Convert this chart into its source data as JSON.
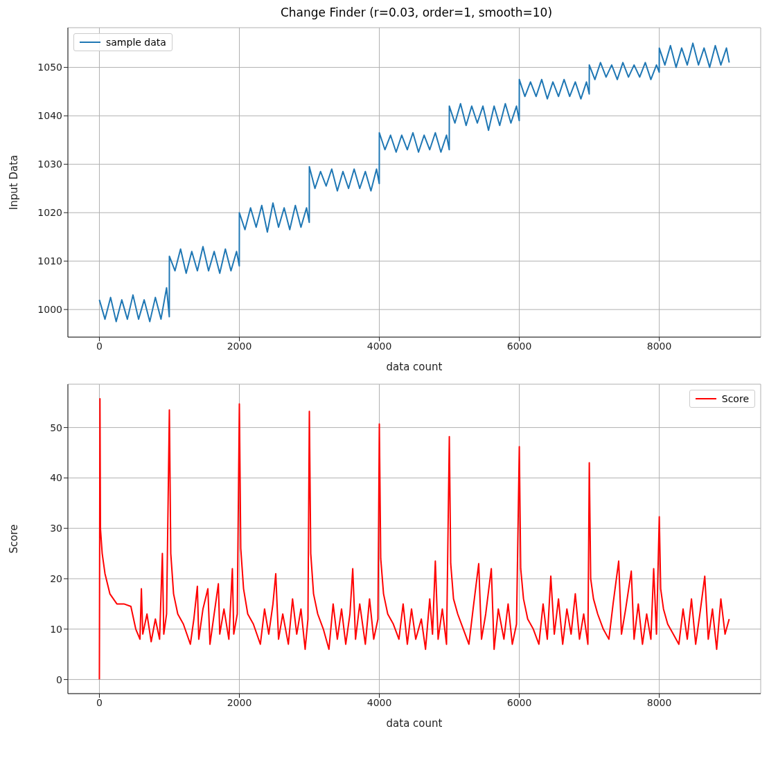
{
  "chart_data": [
    {
      "type": "line",
      "title": "Change Finder (r=0.03, order=1, smooth=10)",
      "xlabel": "data count",
      "ylabel": "Input Data",
      "xlim": [
        -450,
        9449
      ],
      "ylim": [
        994.3,
        1058.2
      ],
      "xticks": [
        0,
        2000,
        4000,
        6000,
        8000
      ],
      "yticks": [
        1000,
        1010,
        1020,
        1030,
        1040,
        1050
      ],
      "grid": true,
      "legend": "top left",
      "marker": "none",
      "line_style": "solid",
      "x": [
        0,
        80,
        160,
        240,
        320,
        400,
        480,
        560,
        640,
        720,
        800,
        880,
        960,
        999,
        1000,
        1080,
        1160,
        1240,
        1320,
        1400,
        1480,
        1560,
        1640,
        1720,
        1800,
        1880,
        1960,
        1999,
        2000,
        2080,
        2160,
        2240,
        2320,
        2400,
        2480,
        2560,
        2640,
        2720,
        2800,
        2880,
        2960,
        2999,
        3000,
        3080,
        3160,
        3240,
        3320,
        3400,
        3480,
        3560,
        3640,
        3720,
        3800,
        3880,
        3960,
        3999,
        4000,
        4080,
        4160,
        4240,
        4320,
        4400,
        4480,
        4560,
        4640,
        4720,
        4800,
        4880,
        4960,
        4999,
        5000,
        5080,
        5160,
        5240,
        5320,
        5400,
        5480,
        5560,
        5640,
        5720,
        5800,
        5880,
        5960,
        5999,
        6000,
        6080,
        6160,
        6240,
        6320,
        6400,
        6480,
        6560,
        6640,
        6720,
        6800,
        6880,
        6960,
        6999,
        7000,
        7080,
        7160,
        7240,
        7320,
        7400,
        7480,
        7560,
        7640,
        7720,
        7800,
        7880,
        7960,
        7999,
        8000,
        8080,
        8160,
        8240,
        8320,
        8400,
        8480,
        8560,
        8640,
        8720,
        8800,
        8880,
        8960,
        8999
      ],
      "series": [
        {
          "name": "sample data",
          "color": "#1f77b4",
          "values": [
            1002,
            998,
            1002.5,
            997.5,
            1002,
            998,
            1003,
            998,
            1002,
            997.5,
            1002.5,
            998,
            1004.5,
            998.5,
            1011,
            1008,
            1012.5,
            1007.5,
            1012,
            1008,
            1013,
            1008,
            1012,
            1007.5,
            1012.5,
            1008,
            1012,
            1009,
            1020,
            1016.5,
            1021,
            1017,
            1021.5,
            1016,
            1022,
            1017,
            1021,
            1016.5,
            1021.5,
            1017,
            1021,
            1018,
            1029.5,
            1025,
            1028.5,
            1025.5,
            1029,
            1024.5,
            1028.5,
            1025,
            1029,
            1025,
            1028.5,
            1024.5,
            1029,
            1026,
            1036.5,
            1033,
            1036,
            1032.5,
            1036,
            1033,
            1036.5,
            1032.5,
            1036,
            1033,
            1036.5,
            1032.5,
            1036,
            1033,
            1042,
            1038.5,
            1042.5,
            1038,
            1042,
            1038.5,
            1042,
            1037,
            1042,
            1038,
            1042.5,
            1038.5,
            1042,
            1039,
            1047.5,
            1044,
            1047,
            1044,
            1047.5,
            1043.5,
            1047,
            1044,
            1047.5,
            1044,
            1047,
            1043.5,
            1047,
            1044.5,
            1050.5,
            1047.5,
            1051,
            1048,
            1050.5,
            1047.5,
            1051,
            1048,
            1050.5,
            1048,
            1051,
            1047.5,
            1050.5,
            1049,
            1054,
            1050.5,
            1054.5,
            1050,
            1054,
            1050.5,
            1055,
            1050.5,
            1054,
            1050,
            1054.5,
            1050.5,
            1054,
            1051
          ]
        }
      ]
    },
    {
      "type": "line",
      "xlabel": "data count",
      "ylabel": "Score",
      "xlim": [
        -450,
        9449
      ],
      "ylim": [
        -2.8,
        58.6
      ],
      "xticks": [
        0,
        2000,
        4000,
        6000,
        8000
      ],
      "yticks": [
        0,
        10,
        20,
        30,
        40,
        50
      ],
      "grid": true,
      "legend": "top right",
      "marker": "none",
      "line_style": "solid",
      "x": [
        0,
        8,
        15,
        40,
        80,
        150,
        250,
        350,
        450,
        520,
        580,
        600,
        620,
        680,
        740,
        800,
        860,
        900,
        920,
        960,
        1000,
        1020,
        1060,
        1120,
        1200,
        1300,
        1350,
        1400,
        1420,
        1480,
        1550,
        1580,
        1640,
        1700,
        1720,
        1780,
        1850,
        1900,
        1920,
        1970,
        2000,
        2020,
        2060,
        2120,
        2200,
        2300,
        2360,
        2420,
        2480,
        2520,
        2560,
        2620,
        2700,
        2760,
        2820,
        2880,
        2940,
        2980,
        3000,
        3020,
        3060,
        3120,
        3200,
        3280,
        3340,
        3400,
        3460,
        3520,
        3580,
        3620,
        3660,
        3720,
        3800,
        3860,
        3920,
        3980,
        4000,
        4020,
        4060,
        4120,
        4200,
        4280,
        4340,
        4400,
        4460,
        4520,
        4600,
        4660,
        4720,
        4760,
        4800,
        4840,
        4900,
        4960,
        5000,
        5020,
        5060,
        5120,
        5200,
        5280,
        5340,
        5420,
        5460,
        5520,
        5600,
        5640,
        5700,
        5780,
        5840,
        5900,
        5960,
        6000,
        6020,
        6060,
        6120,
        6200,
        6280,
        6340,
        6400,
        6450,
        6500,
        6560,
        6620,
        6680,
        6740,
        6800,
        6860,
        6920,
        6980,
        7000,
        7020,
        7060,
        7120,
        7200,
        7280,
        7340,
        7420,
        7460,
        7520,
        7600,
        7640,
        7700,
        7760,
        7820,
        7880,
        7920,
        7960,
        8000,
        8020,
        8060,
        8120,
        8200,
        8280,
        8340,
        8400,
        8460,
        8520,
        8580,
        8650,
        8700,
        8760,
        8820,
        8880,
        8940,
        8999
      ],
      "series": [
        {
          "name": "Score",
          "color": "#ff0000",
          "values": [
            0,
            55.7,
            30,
            25,
            21,
            17,
            15,
            15,
            14.5,
            10,
            8,
            18,
            9,
            13,
            7.5,
            12,
            8,
            25,
            9,
            13,
            53.5,
            25,
            17,
            13,
            11,
            7,
            12,
            18.5,
            8,
            14,
            18,
            7,
            13,
            19,
            9,
            14,
            8,
            22,
            9,
            13,
            54.7,
            26,
            18,
            13,
            11,
            7,
            14,
            9,
            15,
            21,
            8,
            13,
            7,
            16,
            9,
            14,
            6,
            12,
            53.2,
            25,
            17,
            13,
            10,
            6,
            15,
            8,
            14,
            7,
            13,
            22,
            8,
            15,
            7,
            16,
            8,
            12,
            50.7,
            24,
            17,
            13,
            11,
            8,
            15,
            7,
            14,
            8,
            12,
            6,
            16,
            9,
            23.5,
            8,
            14,
            7,
            48.2,
            23,
            16,
            13,
            10,
            7,
            14,
            23,
            8,
            13,
            22,
            6,
            14,
            8,
            15,
            7,
            11,
            46.2,
            22,
            16,
            12,
            10,
            7,
            15,
            8,
            20.5,
            9,
            16,
            7,
            14,
            9,
            17,
            8,
            13,
            7,
            43,
            20,
            16,
            13,
            10,
            8,
            15,
            23.5,
            9,
            14,
            21.5,
            8,
            15,
            7,
            13,
            8,
            22,
            9,
            32.3,
            18,
            14,
            11,
            9,
            7,
            14,
            8,
            16,
            7,
            13,
            20.5,
            8,
            14,
            6,
            16,
            9,
            12
          ]
        }
      ]
    }
  ]
}
